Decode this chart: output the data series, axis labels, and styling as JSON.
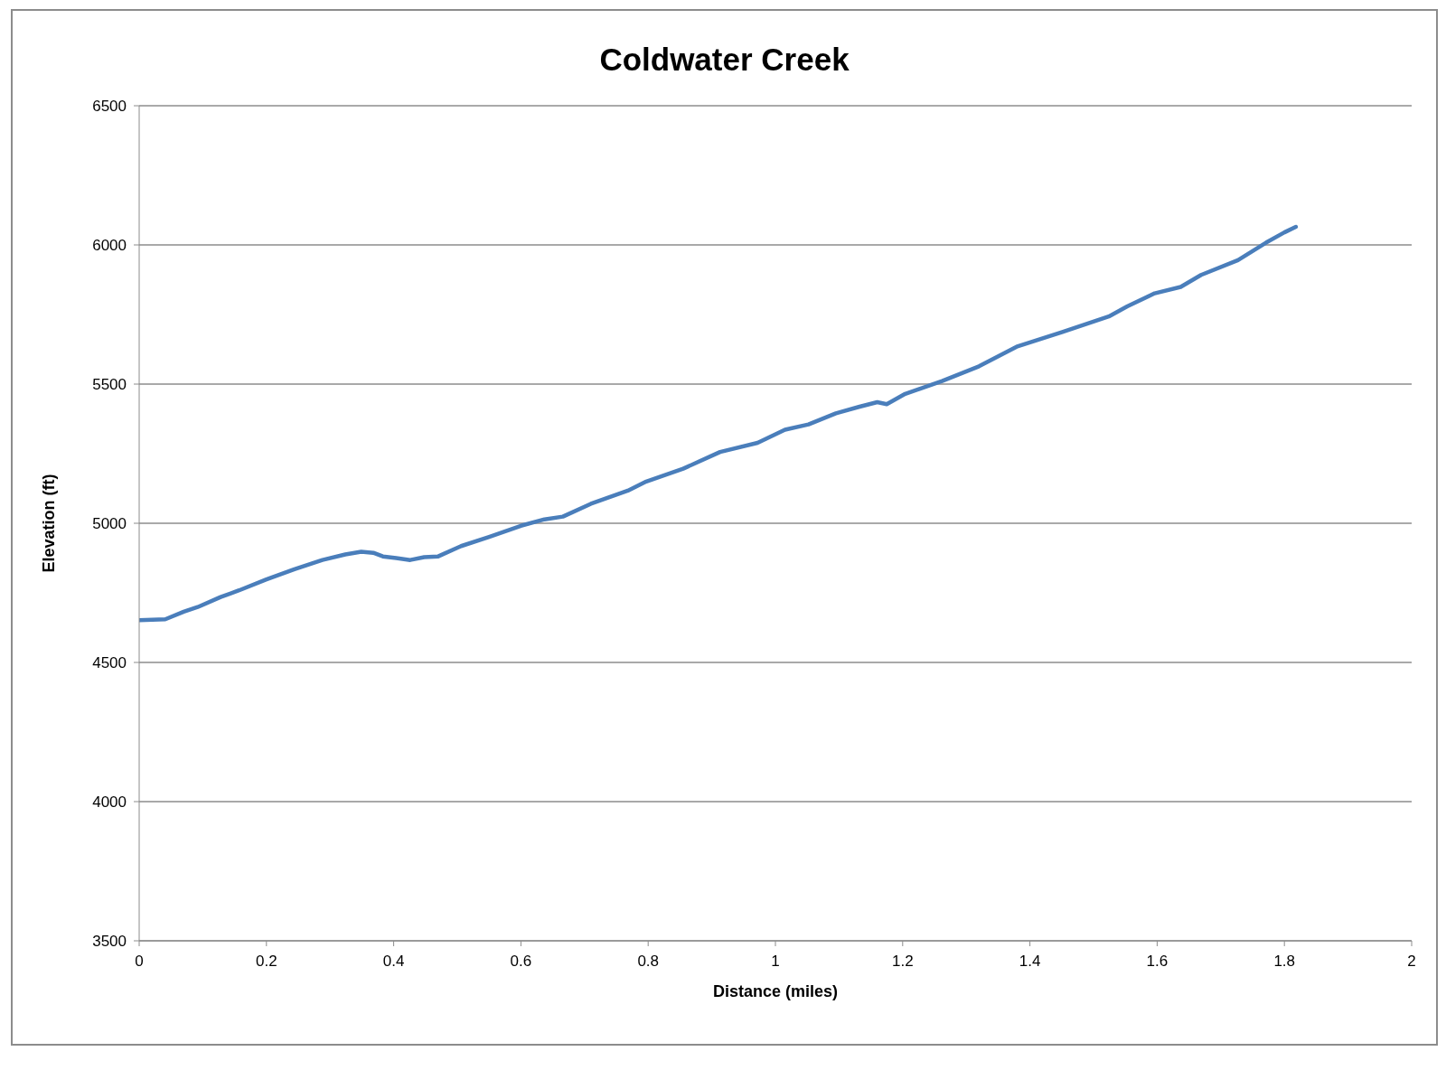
{
  "chart_data": {
    "type": "line",
    "title": "Coldwater Creek",
    "xlabel": "Distance (miles)",
    "ylabel": "Elevation (ft)",
    "xlim": [
      0,
      2
    ],
    "xticks": [
      0,
      0.2,
      0.4,
      0.6,
      0.8,
      1,
      1.2,
      1.4,
      1.6,
      1.8,
      2
    ],
    "ylim": [
      3500,
      6500
    ],
    "yticks": [
      3500,
      4000,
      4500,
      5000,
      5500,
      6000,
      6500
    ],
    "grid": "y",
    "marker": "none",
    "line_style": "solid",
    "series": [
      {
        "color": "#4a7ebb",
        "x": [
          0,
          0.041,
          0.07,
          0.092,
          0.128,
          0.157,
          0.2,
          0.244,
          0.288,
          0.324,
          0.349,
          0.368,
          0.383,
          0.404,
          0.426,
          0.448,
          0.47,
          0.506,
          0.55,
          0.6,
          0.637,
          0.666,
          0.71,
          0.768,
          0.797,
          0.855,
          0.913,
          0.972,
          1.015,
          1.052,
          1.095,
          1.131,
          1.16,
          1.175,
          1.204,
          1.262,
          1.32,
          1.379,
          1.451,
          1.524,
          1.553,
          1.596,
          1.637,
          1.669,
          1.727,
          1.771,
          1.8,
          1.818
        ],
        "values": [
          4652,
          4655,
          4682,
          4699,
          4735,
          4759,
          4798,
          4835,
          4868,
          4888,
          4898,
          4894,
          4881,
          4875,
          4868,
          4878,
          4881,
          4918,
          4951,
          4991,
          5014,
          5024,
          5070,
          5117,
          5150,
          5196,
          5256,
          5289,
          5336,
          5355,
          5395,
          5418,
          5435,
          5428,
          5465,
          5511,
          5564,
          5634,
          5687,
          5743,
          5779,
          5826,
          5849,
          5892,
          5945,
          6008,
          6045,
          6065
        ]
      }
    ]
  }
}
